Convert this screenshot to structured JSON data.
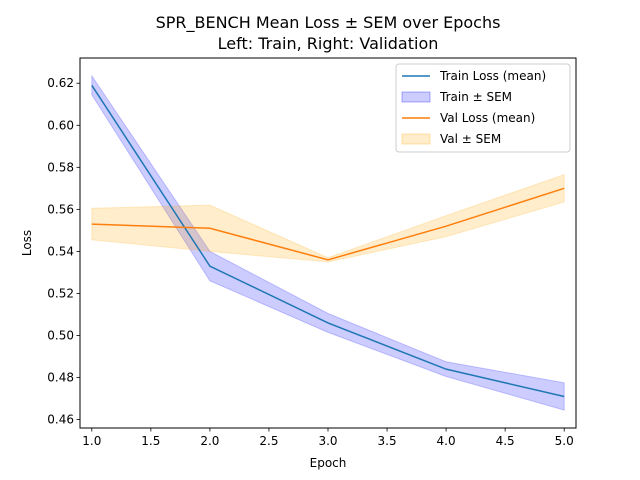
{
  "chart_data": {
    "type": "line",
    "title": "SPR_BENCH Mean Loss ± SEM over Epochs",
    "subtitle": "Left: Train, Right: Validation",
    "xlabel": "Epoch",
    "ylabel": "Loss",
    "xlim": [
      0.9,
      5.1
    ],
    "ylim": [
      0.456,
      0.632
    ],
    "xticks": [
      1.0,
      1.5,
      2.0,
      2.5,
      3.0,
      3.5,
      4.0,
      4.5,
      5.0
    ],
    "xtick_labels": [
      "1.0",
      "1.5",
      "2.0",
      "2.5",
      "3.0",
      "3.5",
      "4.0",
      "4.5",
      "5.0"
    ],
    "yticks": [
      0.46,
      0.48,
      0.5,
      0.52,
      0.54,
      0.56,
      0.58,
      0.6,
      0.62
    ],
    "ytick_labels": [
      "0.46",
      "0.48",
      "0.50",
      "0.52",
      "0.54",
      "0.56",
      "0.58",
      "0.60",
      "0.62"
    ],
    "x": [
      1,
      2,
      3,
      4,
      5
    ],
    "series": [
      {
        "name": "Train Loss (mean)",
        "band_name": "Train ± SEM",
        "color": "#1f77b4",
        "band_color": "#0000ff",
        "values": [
          0.619,
          0.533,
          0.506,
          0.484,
          0.471
        ],
        "sem": [
          0.0045,
          0.007,
          0.0045,
          0.0035,
          0.0065
        ]
      },
      {
        "name": "Val Loss (mean)",
        "band_name": "Val ± SEM",
        "color": "#ff7f0e",
        "band_color": "#ffa500",
        "values": [
          0.553,
          0.551,
          0.536,
          0.552,
          0.57
        ],
        "sem": [
          0.0075,
          0.011,
          0.001,
          0.005,
          0.0065
        ]
      }
    ],
    "legend_position": "top-right",
    "grid": false
  }
}
